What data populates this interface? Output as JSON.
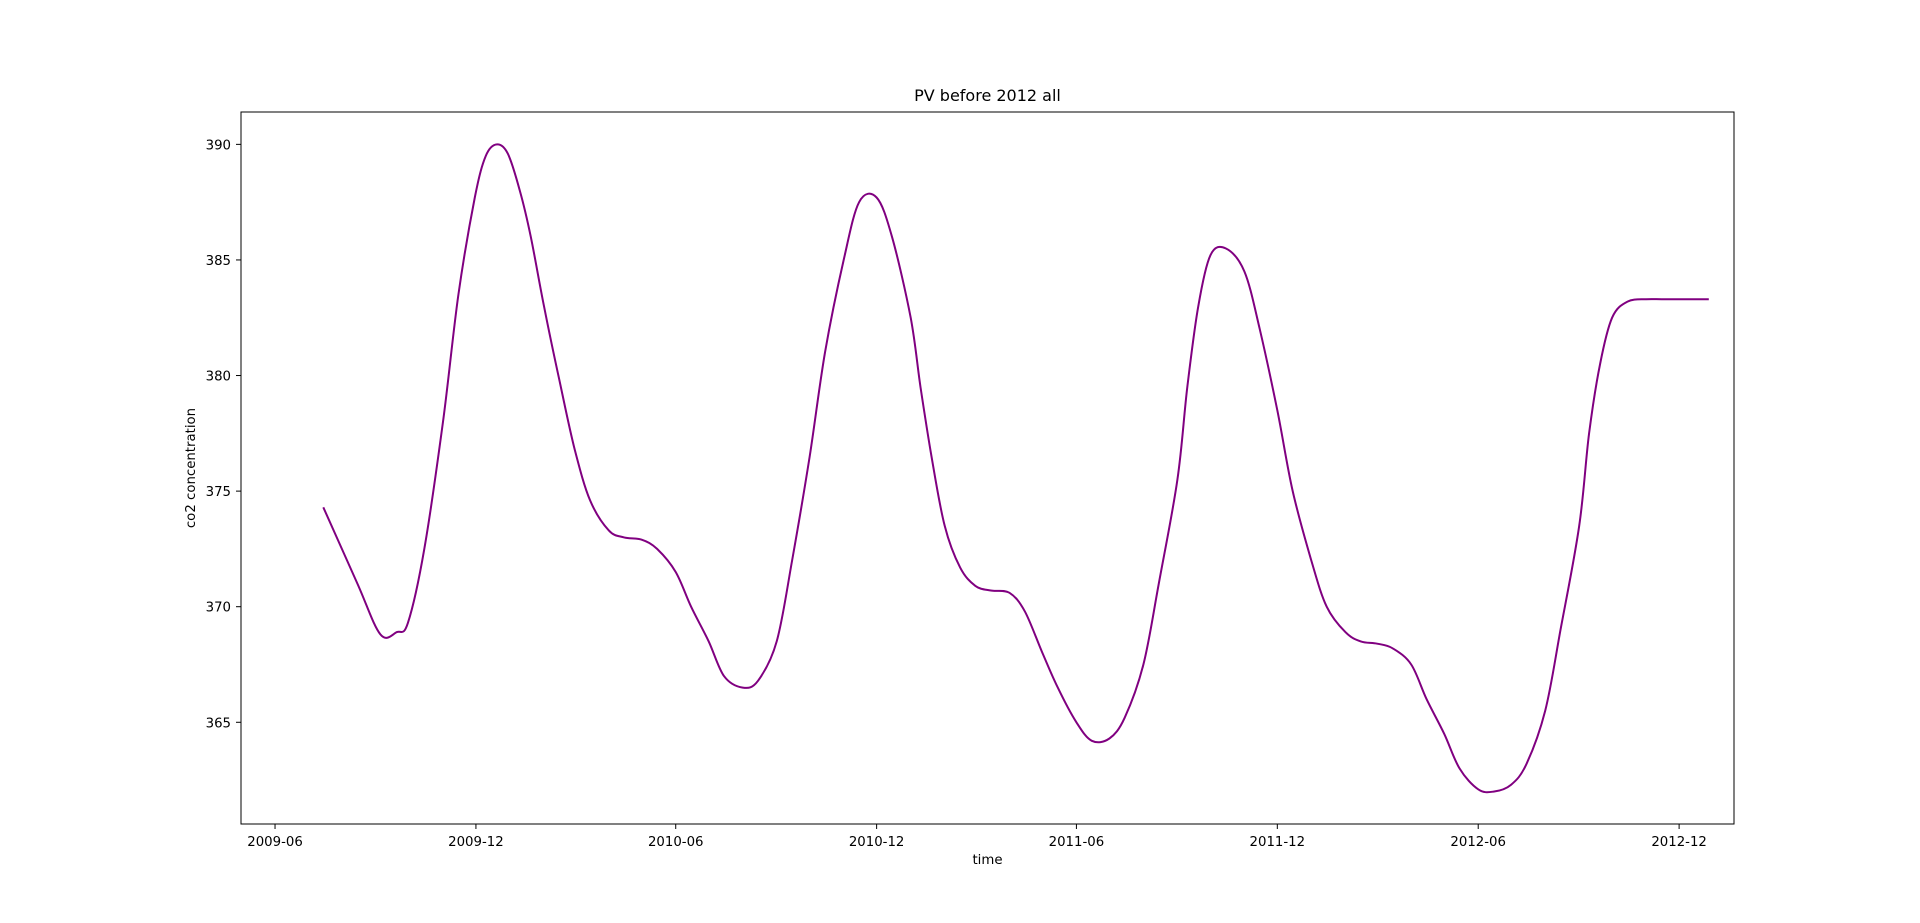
{
  "chart_data": {
    "type": "line",
    "title": "PV before 2012 all",
    "xlabel": "time",
    "ylabel": "co2 concentration",
    "x_ticks": [
      "2009-06",
      "2009-12",
      "2010-06",
      "2010-12",
      "2011-06",
      "2011-12",
      "2012-06",
      "2012-12"
    ],
    "y_ticks": [
      365,
      370,
      375,
      380,
      385,
      390
    ],
    "xlim": [
      "2009-05-01",
      "2013-01-20"
    ],
    "ylim": [
      360.6,
      391.4
    ],
    "grid": false,
    "legend": "none",
    "series": [
      {
        "color": "#800080",
        "x": [
          "2009-07-15",
          "2009-08-15",
          "2009-09-05",
          "2009-09-20",
          "2009-09-30",
          "2009-10-15",
          "2009-11-01",
          "2009-11-15",
          "2009-11-30",
          "2009-12-10",
          "2009-12-20",
          "2009-12-30",
          "2010-01-10",
          "2010-01-20",
          "2010-02-01",
          "2010-02-15",
          "2010-03-01",
          "2010-03-15",
          "2010-04-01",
          "2010-04-15",
          "2010-05-01",
          "2010-05-15",
          "2010-06-01",
          "2010-06-15",
          "2010-07-01",
          "2010-07-15",
          "2010-08-01",
          "2010-08-15",
          "2010-09-01",
          "2010-09-15",
          "2010-10-01",
          "2010-10-15",
          "2010-11-01",
          "2010-11-15",
          "2010-12-01",
          "2010-12-15",
          "2011-01-01",
          "2011-01-10",
          "2011-01-20",
          "2011-02-01",
          "2011-02-15",
          "2011-03-01",
          "2011-03-15",
          "2011-04-01",
          "2011-04-15",
          "2011-05-01",
          "2011-05-15",
          "2011-06-01",
          "2011-06-15",
          "2011-07-01",
          "2011-07-15",
          "2011-08-01",
          "2011-08-15",
          "2011-09-01",
          "2011-09-10",
          "2011-09-20",
          "2011-10-01",
          "2011-10-15",
          "2011-11-01",
          "2011-11-15",
          "2011-12-01",
          "2011-12-15",
          "2012-01-01",
          "2012-01-15",
          "2012-02-01",
          "2012-02-15",
          "2012-03-01",
          "2012-03-15",
          "2012-04-01",
          "2012-04-15",
          "2012-05-01",
          "2012-05-15",
          "2012-06-01",
          "2012-06-15",
          "2012-07-01",
          "2012-07-15",
          "2012-08-01",
          "2012-08-15",
          "2012-09-01",
          "2012-09-10",
          "2012-09-20",
          "2012-10-01",
          "2012-10-15",
          "2012-11-01",
          "2012-11-15",
          "2012-12-01",
          "2012-12-15",
          "2012-12-28"
        ],
        "y": [
          374.3,
          371.0,
          368.8,
          368.9,
          369.3,
          372.5,
          378.0,
          383.5,
          387.7,
          389.5,
          390.0,
          389.6,
          388.0,
          386.0,
          383.0,
          379.8,
          376.8,
          374.6,
          373.3,
          373.0,
          372.9,
          372.5,
          371.5,
          370.0,
          368.5,
          367.0,
          366.5,
          366.8,
          368.5,
          372.0,
          376.5,
          381.0,
          385.0,
          387.5,
          387.7,
          386.0,
          382.5,
          379.5,
          376.5,
          373.5,
          371.7,
          370.9,
          370.7,
          370.6,
          369.8,
          368.0,
          366.5,
          365.0,
          364.2,
          364.3,
          365.2,
          367.5,
          371.0,
          375.5,
          379.5,
          383.0,
          385.2,
          385.5,
          384.5,
          382.0,
          378.5,
          375.0,
          372.0,
          370.0,
          368.9,
          368.5,
          368.4,
          368.2,
          367.5,
          366.0,
          364.5,
          363.0,
          362.1,
          362.0,
          362.3,
          363.2,
          365.5,
          369.0,
          373.5,
          377.5,
          380.5,
          382.5,
          383.2,
          383.3,
          383.3,
          383.3,
          383.3,
          383.3
        ]
      }
    ]
  }
}
